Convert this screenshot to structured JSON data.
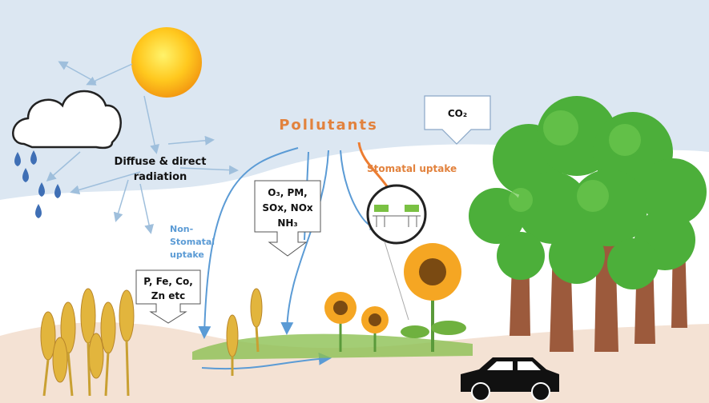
{
  "pollutants_label": "Pollutants",
  "co2_label": "CO₂",
  "radiation_label": {
    "lines": [
      "Diffuse & direct",
      "radiation"
    ]
  },
  "pollutant_box": {
    "lines": [
      "O₃, PM,",
      "SOx, NOx",
      "NH₃"
    ]
  },
  "stomatal_label": "Stomatal uptake",
  "non_stomatal_label": {
    "lines": [
      "Non-",
      "Stomatal",
      "uptake"
    ]
  },
  "nutrient_box": {
    "lines": [
      "P, Fe, Co,",
      "Zn etc"
    ]
  }
}
